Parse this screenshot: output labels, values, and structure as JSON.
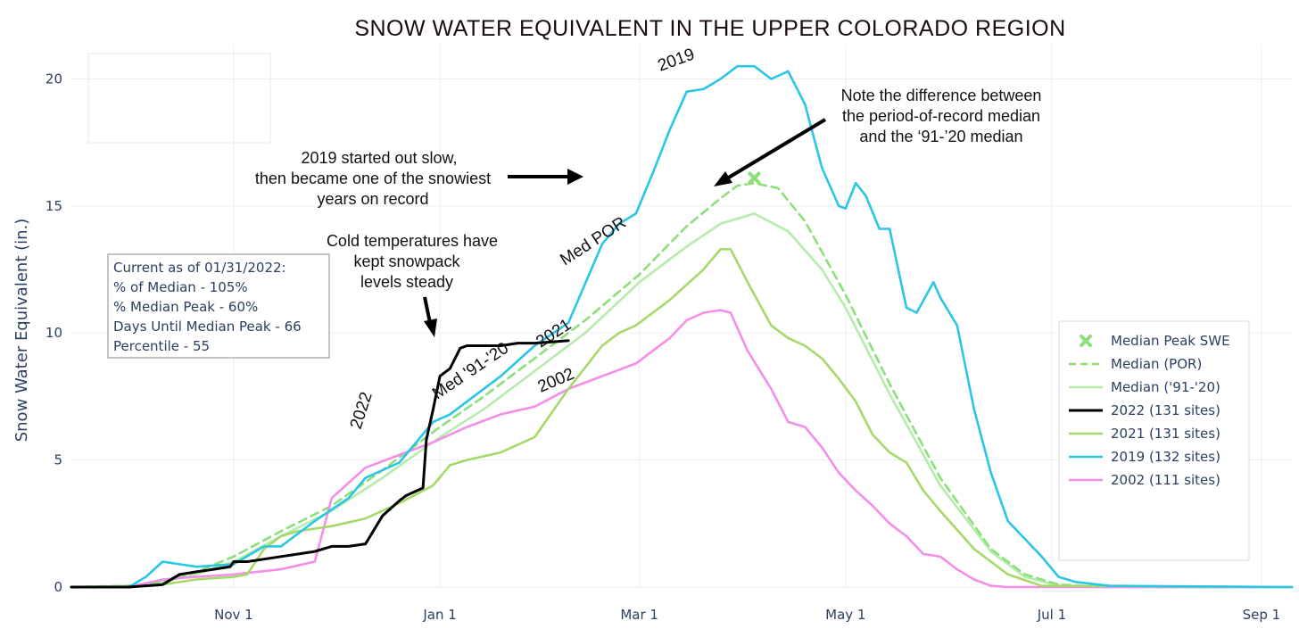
{
  "chart_data": {
    "type": "line",
    "title": "SNOW WATER EQUIVALENT IN THE UPPER COLORADO REGION",
    "xlabel": "",
    "ylabel": "Snow Water Equivalent (in.)",
    "ylim": [
      0,
      21
    ],
    "yticks": [
      0,
      5,
      10,
      15,
      20
    ],
    "x_unit": "day of water year (Oct 1 = 0)",
    "xlim": [
      -17,
      344
    ],
    "xticks": [
      {
        "day": 31,
        "label": "Nov 1"
      },
      {
        "day": 92,
        "label": "Jan 1"
      },
      {
        "day": 151,
        "label": "Mar 1"
      },
      {
        "day": 212,
        "label": "May 1"
      },
      {
        "day": 273,
        "label": "Jul 1"
      },
      {
        "day": 335,
        "label": "Sep 1"
      }
    ],
    "series": [
      {
        "name": "Median (POR)",
        "color": "#8be07a",
        "dash": true,
        "x": [
          -17,
          0,
          10,
          20,
          31,
          45,
          60,
          75,
          92,
          105,
          120,
          135,
          151,
          165,
          175,
          180,
          185,
          192,
          200,
          212,
          225,
          240,
          255,
          265,
          275,
          285,
          300,
          344
        ],
        "y": [
          0,
          0.05,
          0.2,
          0.6,
          1.2,
          2.2,
          3.2,
          4.6,
          6.3,
          7.5,
          9.0,
          10.5,
          12.3,
          14.2,
          15.3,
          15.8,
          15.9,
          15.7,
          14.4,
          11.5,
          8.0,
          4.3,
          1.5,
          0.5,
          0.1,
          0.02,
          0,
          0
        ]
      },
      {
        "name": "Median ('91-'20)",
        "color": "#b5ecab",
        "dash": false,
        "x": [
          -17,
          0,
          10,
          20,
          31,
          45,
          60,
          75,
          92,
          105,
          120,
          135,
          151,
          165,
          175,
          185,
          195,
          205,
          212,
          225,
          240,
          255,
          265,
          275,
          290,
          344
        ],
        "y": [
          0,
          0.05,
          0.2,
          0.5,
          1.0,
          2.0,
          3.0,
          4.3,
          5.9,
          7.0,
          8.5,
          10.0,
          12.0,
          13.4,
          14.3,
          14.7,
          14.0,
          12.5,
          11.0,
          7.6,
          4.0,
          1.4,
          0.4,
          0.05,
          0,
          0
        ]
      },
      {
        "name": "2022 (131 sites)",
        "color": "#000000",
        "dash": false,
        "x": [
          -17,
          0,
          10,
          15,
          20,
          25,
          30,
          31,
          35,
          40,
          45,
          50,
          55,
          60,
          65,
          70,
          75,
          80,
          82,
          87,
          88,
          90,
          92,
          95,
          98,
          100,
          102,
          105,
          110,
          115,
          120,
          125,
          130
        ],
        "y": [
          0,
          0.0,
          0.1,
          0.5,
          0.6,
          0.7,
          0.8,
          1.0,
          1.0,
          1.1,
          1.2,
          1.3,
          1.4,
          1.6,
          1.6,
          1.7,
          2.8,
          3.4,
          3.6,
          3.9,
          5.8,
          7.0,
          8.3,
          8.6,
          9.4,
          9.5,
          9.5,
          9.5,
          9.5,
          9.6,
          9.6,
          9.65,
          9.7
        ]
      },
      {
        "name": "2021 (131 sites)",
        "color": "#a6d96a",
        "dash": false,
        "x": [
          -17,
          0,
          10,
          20,
          31,
          35,
          40,
          45,
          50,
          55,
          60,
          70,
          80,
          90,
          95,
          100,
          110,
          120,
          130,
          140,
          145,
          150,
          155,
          160,
          170,
          175,
          178,
          183,
          190,
          195,
          200,
          205,
          210,
          215,
          220,
          225,
          230,
          235,
          240,
          250,
          260,
          270,
          344
        ],
        "y": [
          0,
          0.0,
          0.1,
          0.3,
          0.4,
          0.5,
          1.5,
          2.0,
          2.2,
          2.3,
          2.4,
          2.7,
          3.3,
          4.0,
          4.8,
          5.0,
          5.3,
          5.9,
          7.8,
          9.5,
          10.0,
          10.3,
          10.8,
          11.3,
          12.5,
          13.3,
          13.3,
          12.0,
          10.3,
          9.8,
          9.5,
          9.0,
          8.2,
          7.3,
          6.0,
          5.3,
          4.9,
          3.8,
          3.0,
          1.5,
          0.5,
          0.05,
          0
        ]
      },
      {
        "name": "2019 (132 sites)",
        "color": "#29c6e6",
        "dash": false,
        "x": [
          -17,
          0,
          5,
          10,
          15,
          20,
          31,
          40,
          45,
          55,
          65,
          70,
          80,
          90,
          95,
          100,
          110,
          120,
          130,
          140,
          145,
          150,
          155,
          160,
          165,
          170,
          175,
          180,
          185,
          190,
          195,
          200,
          205,
          210,
          212,
          215,
          218,
          222,
          225,
          230,
          233,
          238,
          240,
          245,
          250,
          255,
          260,
          265,
          270,
          275,
          280,
          290,
          344
        ],
        "y": [
          0,
          0.0,
          0.4,
          1.0,
          0.9,
          0.8,
          0.9,
          1.6,
          1.6,
          2.6,
          3.5,
          4.3,
          4.9,
          6.5,
          6.8,
          7.3,
          8.3,
          9.5,
          10.4,
          13.5,
          14.3,
          14.7,
          16.3,
          18.0,
          19.5,
          19.6,
          20.0,
          20.5,
          20.5,
          20.0,
          20.3,
          19.0,
          16.5,
          15.0,
          14.9,
          15.9,
          15.4,
          14.1,
          14.1,
          11.0,
          10.8,
          12.0,
          11.4,
          10.3,
          7.0,
          4.5,
          2.6,
          1.9,
          1.2,
          0.4,
          0.2,
          0.05,
          0
        ]
      },
      {
        "name": "2002 (111 sites)",
        "color": "#f48ee8",
        "dash": false,
        "x": [
          -17,
          0,
          10,
          20,
          31,
          45,
          55,
          60,
          70,
          80,
          90,
          100,
          110,
          120,
          130,
          140,
          150,
          160,
          165,
          170,
          175,
          178,
          183,
          190,
          195,
          200,
          205,
          210,
          215,
          220,
          225,
          230,
          235,
          240,
          245,
          250,
          255,
          260,
          344
        ],
        "y": [
          0,
          0.0,
          0.3,
          0.4,
          0.5,
          0.7,
          1.0,
          3.5,
          4.7,
          5.2,
          5.7,
          6.3,
          6.8,
          7.1,
          7.8,
          8.3,
          8.8,
          9.8,
          10.5,
          10.8,
          10.9,
          10.8,
          9.3,
          7.8,
          6.5,
          6.3,
          5.5,
          4.5,
          3.8,
          3.2,
          2.5,
          2.0,
          1.3,
          1.2,
          0.7,
          0.3,
          0.05,
          0,
          0
        ]
      }
    ],
    "median_peak": {
      "name": "Median Peak SWE",
      "x": 185,
      "y": 16.1,
      "color": "#8be07a"
    },
    "legend": [
      "Median Peak SWE",
      "Median (POR)",
      "Median ('91-'20)",
      "2022 (131 sites)",
      "2021 (131 sites)",
      "2019 (132 sites)",
      "2002 (111 sites)"
    ],
    "curve_labels": [
      "2019",
      "Med POR",
      "2021",
      "Med '91-'20",
      "2022",
      "2002"
    ],
    "annotations": {
      "note_2019": [
        "2019 started out slow,",
        "then became one of the snowiest",
        "years on record"
      ],
      "note_cold": [
        "Cold temperatures have",
        "kept snowpack",
        "levels steady"
      ],
      "note_median": [
        "Note the difference between",
        "the period-of-record median",
        "and the ‘91-’20 median"
      ]
    },
    "status_box": [
      "Current as of 01/31/2022:",
      "% of Median - 105%",
      "% Median Peak - 60%",
      "Days Until Median Peak - 66",
      "Percentile - 55"
    ]
  }
}
